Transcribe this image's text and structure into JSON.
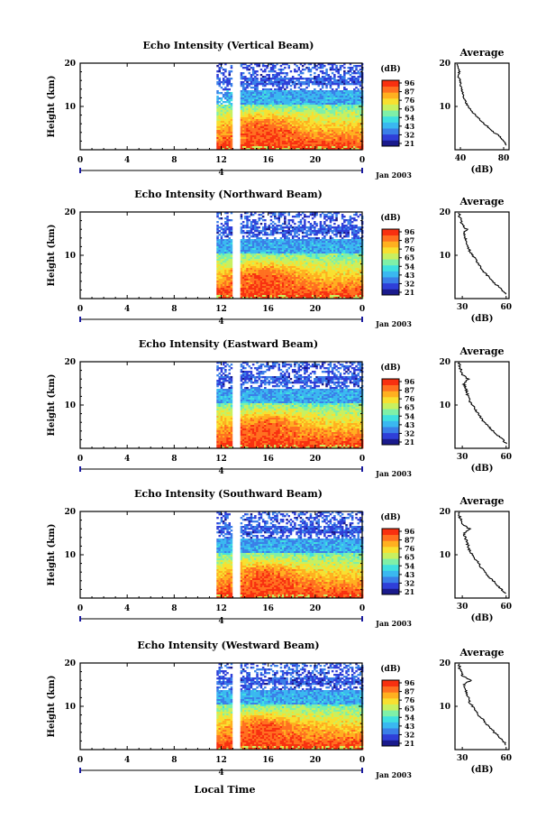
{
  "figure": {
    "xlabel": "Local Time",
    "date_label": "Jan 2003",
    "day_label": "4",
    "x_ticks": [
      "0",
      "4",
      "8",
      "12",
      "16",
      "20",
      "0"
    ],
    "y_ticks": [
      "20",
      "10"
    ],
    "ylabel": "Height (km)",
    "colorbar_unit": "(dB)",
    "colorbar_ticks": [
      "96",
      "87",
      "76",
      "65",
      "54",
      "43",
      "32",
      "21"
    ],
    "average_title": "Average",
    "average_xlabel": "(dB)",
    "average_y_ticks": [
      "20",
      "10"
    ]
  },
  "colors": {
    "colormap": [
      "#1a1a8c",
      "#2f3fd8",
      "#3a7fe8",
      "#3ab8f0",
      "#40e0e0",
      "#7ff0a8",
      "#c8f060",
      "#f8e030",
      "#ffb020",
      "#ff7020",
      "#f83010"
    ]
  },
  "chart_data": [
    {
      "type": "heatmap",
      "title": "Echo Intensity (Vertical Beam)",
      "xlabel": "Local Time",
      "ylabel": "Height (km)",
      "xlim": [
        0,
        24
      ],
      "ylim": [
        0,
        20
      ],
      "x_ticks": [
        0,
        4,
        8,
        12,
        16,
        20,
        24
      ],
      "data_start_hour": 11.6,
      "gap_hours": [
        13.0,
        13.5
      ],
      "colorbar_label": "(dB)",
      "colorbar_ticks": [
        96,
        87,
        76,
        65,
        54,
        43,
        32,
        21
      ],
      "colorbar_range": [
        21,
        96
      ],
      "average_profile": {
        "title": "Average",
        "xlabel": "(dB)",
        "x_ticks": [
          "40",
          "80"
        ],
        "xlim": [
          35,
          85
        ],
        "height_km": [
          1,
          2,
          3,
          4,
          5,
          6,
          7,
          8,
          9,
          10,
          11,
          12,
          13,
          14,
          15,
          16,
          17,
          18,
          19,
          20
        ],
        "db": [
          83,
          80,
          77,
          71,
          67,
          62,
          58,
          54,
          50,
          47,
          45,
          43,
          42,
          41,
          40,
          40,
          38,
          39,
          38,
          37
        ]
      }
    },
    {
      "type": "heatmap",
      "title": "Echo Intensity (Northward Beam)",
      "xlabel": "Local Time",
      "ylabel": "Height (km)",
      "xlim": [
        0,
        24
      ],
      "ylim": [
        0,
        20
      ],
      "x_ticks": [
        0,
        4,
        8,
        12,
        16,
        20,
        24
      ],
      "data_start_hour": 11.6,
      "gap_hours": [
        13.0,
        13.5
      ],
      "colorbar_label": "(dB)",
      "colorbar_ticks": [
        96,
        87,
        76,
        65,
        54,
        43,
        32,
        21
      ],
      "colorbar_range": [
        21,
        96
      ],
      "average_profile": {
        "title": "Average",
        "xlabel": "(dB)",
        "x_ticks": [
          "30",
          "60"
        ],
        "xlim": [
          25,
          62
        ],
        "height_km": [
          1,
          2,
          3,
          4,
          5,
          6,
          7,
          8,
          9,
          10,
          11,
          12,
          13,
          14,
          15,
          16,
          17,
          18,
          19,
          20
        ],
        "db": [
          60,
          57,
          54,
          51,
          48,
          45,
          43,
          41,
          39,
          37,
          35,
          34,
          33,
          32,
          31,
          33,
          30,
          29,
          28,
          28
        ]
      }
    },
    {
      "type": "heatmap",
      "title": "Echo Intensity (Eastward Beam)",
      "xlabel": "Local Time",
      "ylabel": "Height (km)",
      "xlim": [
        0,
        24
      ],
      "ylim": [
        0,
        20
      ],
      "x_ticks": [
        0,
        4,
        8,
        12,
        16,
        20,
        24
      ],
      "data_start_hour": 11.6,
      "gap_hours": [
        13.0,
        13.5
      ],
      "colorbar_label": "(dB)",
      "colorbar_ticks": [
        96,
        87,
        76,
        65,
        54,
        43,
        32,
        21
      ],
      "colorbar_range": [
        21,
        96
      ],
      "average_profile": {
        "title": "Average",
        "xlabel": "(dB)",
        "x_ticks": [
          "30",
          "60"
        ],
        "xlim": [
          25,
          62
        ],
        "height_km": [
          1,
          2,
          3,
          4,
          5,
          6,
          7,
          8,
          9,
          10,
          11,
          12,
          13,
          14,
          15,
          16,
          17,
          18,
          19,
          20
        ],
        "db": [
          60,
          58,
          54,
          51,
          48,
          45,
          43,
          41,
          39,
          37,
          35,
          34,
          33,
          32,
          31,
          34,
          30,
          29,
          28,
          28
        ]
      }
    },
    {
      "type": "heatmap",
      "title": "Echo Intensity (Southward Beam)",
      "xlabel": "Local Time",
      "ylabel": "Height (km)",
      "xlim": [
        0,
        24
      ],
      "ylim": [
        0,
        20
      ],
      "x_ticks": [
        0,
        4,
        8,
        12,
        16,
        20,
        24
      ],
      "data_start_hour": 11.6,
      "gap_hours": [
        13.0,
        13.5
      ],
      "colorbar_label": "(dB)",
      "colorbar_ticks": [
        96,
        87,
        76,
        65,
        54,
        43,
        32,
        21
      ],
      "colorbar_range": [
        21,
        96
      ],
      "average_profile": {
        "title": "Average",
        "xlabel": "(dB)",
        "x_ticks": [
          "30",
          "60"
        ],
        "xlim": [
          25,
          62
        ],
        "height_km": [
          1,
          2,
          3,
          4,
          5,
          6,
          7,
          8,
          9,
          10,
          11,
          12,
          13,
          14,
          15,
          16,
          17,
          18,
          19,
          20
        ],
        "db": [
          60,
          57,
          54,
          51,
          48,
          45,
          43,
          41,
          39,
          37,
          35,
          34,
          33,
          32,
          31,
          35,
          30,
          29,
          28,
          28
        ]
      }
    },
    {
      "type": "heatmap",
      "title": "Echo Intensity (Westward Beam)",
      "xlabel": "Local Time",
      "ylabel": "Height (km)",
      "xlim": [
        0,
        24
      ],
      "ylim": [
        0,
        20
      ],
      "x_ticks": [
        0,
        4,
        8,
        12,
        16,
        20,
        24
      ],
      "data_start_hour": 11.6,
      "gap_hours": [
        13.0,
        13.5
      ],
      "colorbar_label": "(dB)",
      "colorbar_ticks": [
        96,
        87,
        76,
        65,
        54,
        43,
        32,
        21
      ],
      "colorbar_range": [
        21,
        96
      ],
      "average_profile": {
        "title": "Average",
        "xlabel": "(dB)",
        "x_ticks": [
          "30",
          "60"
        ],
        "xlim": [
          25,
          62
        ],
        "height_km": [
          1,
          2,
          3,
          4,
          5,
          6,
          7,
          8,
          9,
          10,
          11,
          12,
          13,
          14,
          15,
          16,
          17,
          18,
          19,
          20
        ],
        "db": [
          60,
          58,
          55,
          52,
          49,
          46,
          44,
          41,
          39,
          37,
          35,
          34,
          33,
          32,
          31,
          36,
          30,
          29,
          28,
          28
        ]
      }
    }
  ]
}
